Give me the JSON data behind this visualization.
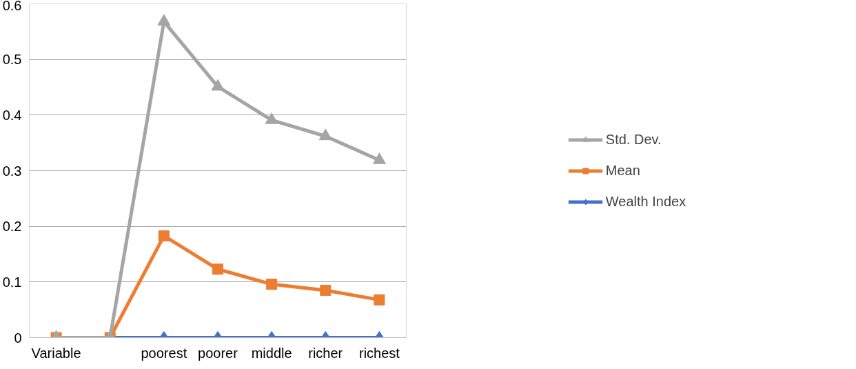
{
  "chart_data": {
    "type": "line",
    "categories": [
      "Variable",
      null,
      "poorest",
      "poorer",
      "middle",
      "richer",
      "richest"
    ],
    "series": [
      {
        "name": "Wealth Index",
        "color": "#4472c4",
        "marker": "diamond",
        "values": [
          null,
          0,
          0,
          0,
          0,
          0,
          0
        ]
      },
      {
        "name": "Mean",
        "color": "#ed7d31",
        "marker": "square",
        "values": [
          0,
          0,
          0.183,
          0.123,
          0.096,
          0.085,
          0.068
        ]
      },
      {
        "name": "Std. Dev.",
        "color": "#a5a5a5",
        "marker": "triangle",
        "values": [
          0,
          0,
          0.568,
          0.451,
          0.391,
          0.362,
          0.319
        ]
      }
    ],
    "ylim": [
      0,
      0.6
    ],
    "yticks": [
      0,
      0.1,
      0.2,
      0.3,
      0.4,
      0.5,
      0.6
    ],
    "grid": "y",
    "legend": "right",
    "line_style": "solid"
  }
}
